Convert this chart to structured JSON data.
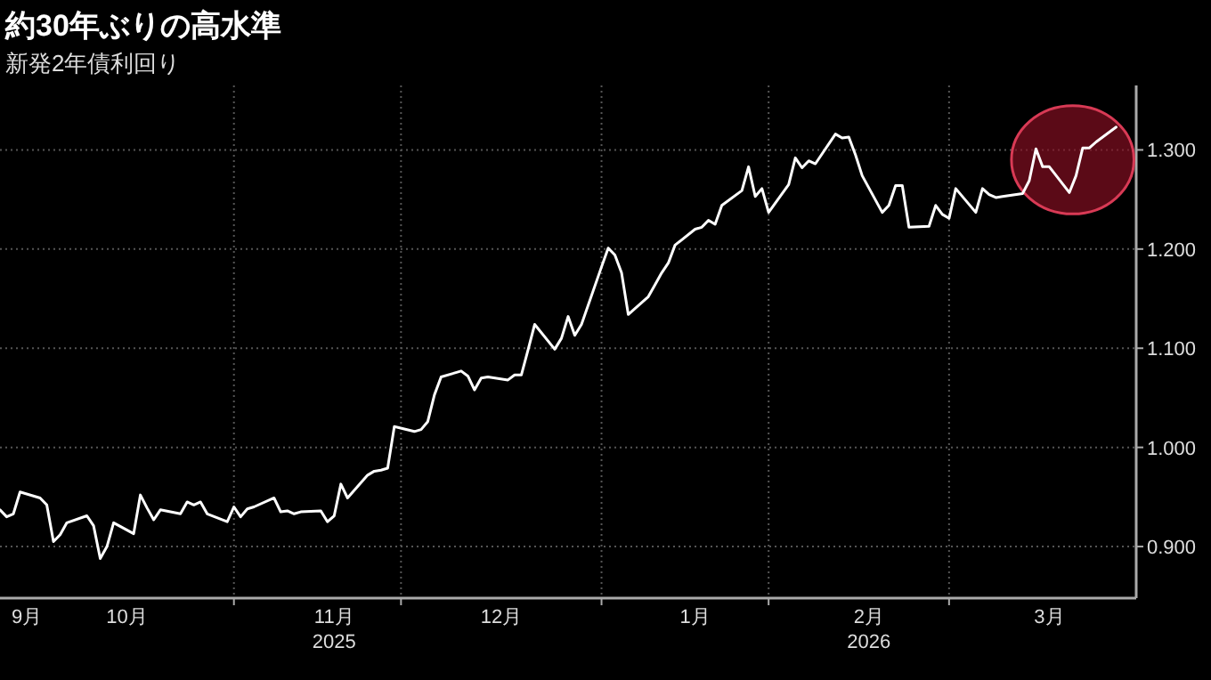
{
  "chart_data": {
    "type": "line",
    "title": "約30年ぶりの高水準",
    "subtitle": "新発2年債利回り",
    "x": [
      "2025-10-07",
      "2025-10-08",
      "2025-10-09",
      "2025-10-10",
      "2025-10-13",
      "2025-10-14",
      "2025-10-15",
      "2025-10-16",
      "2025-10-17",
      "2025-10-20",
      "2025-10-21",
      "2025-10-22",
      "2025-10-23",
      "2025-10-24",
      "2025-10-27",
      "2025-10-28",
      "2025-10-29",
      "2025-10-30",
      "2025-10-31",
      "2025-11-03",
      "2025-11-04",
      "2025-11-05",
      "2025-11-06",
      "2025-11-07",
      "2025-11-10",
      "2025-11-11",
      "2025-11-12",
      "2025-11-13",
      "2025-11-14",
      "2025-11-17",
      "2025-11-18",
      "2025-11-19",
      "2025-11-20",
      "2025-11-21",
      "2025-11-24",
      "2025-11-25",
      "2025-11-26",
      "2025-11-27",
      "2025-11-28",
      "2025-12-01",
      "2025-12-02",
      "2025-12-03",
      "2025-12-04",
      "2025-12-05",
      "2025-12-08",
      "2025-12-09",
      "2025-12-10",
      "2025-12-11",
      "2025-12-12",
      "2025-12-15",
      "2025-12-16",
      "2025-12-17",
      "2025-12-18",
      "2025-12-19",
      "2025-12-22",
      "2025-12-23",
      "2025-12-24",
      "2025-12-25",
      "2025-12-26",
      "2025-12-29",
      "2025-12-30",
      "2025-12-31",
      "2026-01-01",
      "2026-01-02",
      "2026-01-05",
      "2026-01-06",
      "2026-01-07",
      "2026-01-08",
      "2026-01-09",
      "2026-01-12",
      "2026-01-13",
      "2026-01-14",
      "2026-01-15",
      "2026-01-16",
      "2026-01-19",
      "2026-01-20",
      "2026-01-21",
      "2026-01-22",
      "2026-01-23",
      "2026-01-26",
      "2026-01-27",
      "2026-01-28",
      "2026-01-29",
      "2026-01-30",
      "2026-02-02",
      "2026-02-03",
      "2026-02-04",
      "2026-02-05",
      "2026-02-06",
      "2026-02-09",
      "2026-02-10",
      "2026-02-11",
      "2026-02-12",
      "2026-02-13",
      "2026-02-16",
      "2026-02-17",
      "2026-02-18",
      "2026-02-19",
      "2026-02-20",
      "2026-02-23",
      "2026-02-24",
      "2026-02-25",
      "2026-02-26",
      "2026-02-27",
      "2026-03-02",
      "2026-03-03",
      "2026-03-04",
      "2026-03-05",
      "2026-03-06",
      "2026-03-09",
      "2026-03-10",
      "2026-03-11",
      "2026-03-12",
      "2026-03-13",
      "2026-03-16",
      "2026-03-17",
      "2026-03-18",
      "2026-03-19",
      "2026-03-20",
      "2026-03-23"
    ],
    "series": [
      {
        "color": "#ffffff",
        "values": [
          0.937,
          0.93,
          0.933,
          0.955,
          0.949,
          0.942,
          0.905,
          0.912,
          0.924,
          0.931,
          0.921,
          0.888,
          0.9,
          0.924,
          0.913,
          0.952,
          0.939,
          0.927,
          0.937,
          0.933,
          0.945,
          0.942,
          0.945,
          0.933,
          0.925,
          0.94,
          0.93,
          0.938,
          0.94,
          0.949,
          0.935,
          0.936,
          0.933,
          0.935,
          0.936,
          0.925,
          0.931,
          0.963,
          0.949,
          0.972,
          0.976,
          0.977,
          0.979,
          1.021,
          1.016,
          1.018,
          1.026,
          1.053,
          1.071,
          1.077,
          1.072,
          1.058,
          1.07,
          1.071,
          1.068,
          1.073,
          1.073,
          1.098,
          1.124,
          1.099,
          1.11,
          1.132,
          1.113,
          1.124,
          1.182,
          1.201,
          1.194,
          1.176,
          1.134,
          1.152,
          1.164,
          1.176,
          1.186,
          1.204,
          1.22,
          1.222,
          1.229,
          1.225,
          1.244,
          1.259,
          1.283,
          1.253,
          1.261,
          1.237,
          1.265,
          1.292,
          1.282,
          1.289,
          1.286,
          1.316,
          1.312,
          1.313,
          1.295,
          1.274,
          1.237,
          1.244,
          1.264,
          1.264,
          1.222,
          1.223,
          1.244,
          1.235,
          1.231,
          1.261,
          1.237,
          1.261,
          1.255,
          1.252,
          1.253,
          1.256,
          1.269,
          1.301,
          1.283,
          1.283,
          1.257,
          1.274,
          1.302,
          1.302,
          1.308,
          1.323
        ]
      }
    ],
    "xlim": [
      "2025-10-07",
      "2026-03-26"
    ],
    "xticks": [
      {
        "value": "2025-10-11",
        "label": "9月"
      },
      {
        "value": "2025-10-26",
        "label": "10月"
      },
      {
        "value": "2025-11-26",
        "label": "11月\n2025"
      },
      {
        "value": "2025-12-21",
        "label": "12月"
      },
      {
        "value": "2026-01-19",
        "label": "1月"
      },
      {
        "value": "2026-02-14",
        "label": "2月\n2026"
      },
      {
        "value": "2026-03-13",
        "label": "3月"
      },
      {
        "value": "2025-11-11",
        "label": null
      },
      {
        "value": "2025-12-06",
        "label": null
      },
      {
        "value": "2026-01-05",
        "label": null
      },
      {
        "value": "2026-01-30",
        "label": null
      },
      {
        "value": "2026-02-26",
        "label": null
      }
    ],
    "ylim": [
      0.848,
      1.365
    ],
    "yticks": [
      {
        "value": 0.9,
        "label": "0.900"
      },
      {
        "value": 1.0,
        "label": "1.000"
      },
      {
        "value": 1.1,
        "label": "1.100"
      },
      {
        "value": 1.2,
        "label": "1.200"
      },
      {
        "value": 1.3,
        "label": "1.300"
      }
    ],
    "grid": true,
    "marker": "none",
    "line_style": "solid"
  }
}
